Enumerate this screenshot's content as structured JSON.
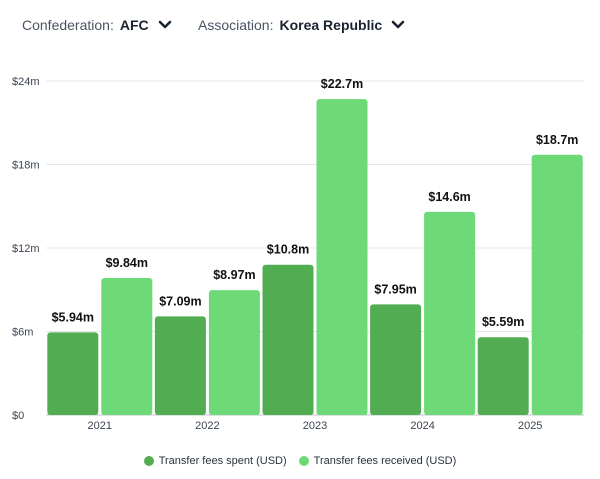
{
  "filters": {
    "confederation": {
      "label": "Confederation:",
      "value": "AFC"
    },
    "association": {
      "label": "Association:",
      "value": "Korea Republic"
    }
  },
  "colors": {
    "spent": "#52ad52",
    "received": "#6ed977",
    "grid": "#e4e7ea",
    "axis": "#bfc5cb"
  },
  "chart_data": {
    "type": "bar",
    "title": "",
    "xlabel": "",
    "ylabel": "",
    "categories": [
      "2021",
      "2022",
      "2023",
      "2024",
      "2025"
    ],
    "series": [
      {
        "name": "Transfer fees spent (USD)",
        "values": [
          5.94,
          7.09,
          10.8,
          7.95,
          5.59
        ],
        "labels": [
          "$5.94m",
          "$7.09m",
          "$10.8m",
          "$7.95m",
          "$5.59m"
        ]
      },
      {
        "name": "Transfer fees received (USD)",
        "values": [
          9.84,
          8.97,
          22.7,
          14.6,
          18.7
        ],
        "labels": [
          "$9.84m",
          "$8.97m",
          "$22.7m",
          "$14.6m",
          "$18.7m"
        ]
      }
    ],
    "ylim": [
      0,
      24
    ],
    "yticks": [
      0,
      6,
      12,
      18,
      24
    ],
    "ytick_labels": [
      "$0",
      "$6m",
      "$12m",
      "$18m",
      "$24m"
    ],
    "grid": true,
    "legend": "bottom-center"
  }
}
